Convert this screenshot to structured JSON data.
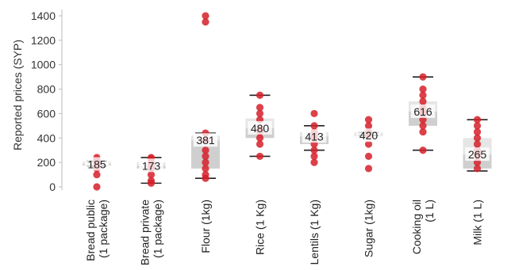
{
  "chart_data": {
    "type": "scatter",
    "ylabel": "Reported prices (SYP)",
    "ylim": [
      0,
      1400
    ],
    "yticks": [
      0,
      200,
      400,
      600,
      800,
      1000,
      1200,
      1400
    ],
    "grid": false,
    "categories": [
      [
        "Bread public",
        "(1 package)"
      ],
      [
        "Bread private",
        "(1 package)"
      ],
      [
        "Flour (1kg)"
      ],
      [
        "Rice (1 Kg)"
      ],
      [
        "Lentils (1 Kg)"
      ],
      [
        "Sugar (1kg)"
      ],
      [
        "Cooking oil",
        "(1 L)"
      ],
      [
        "Milk (1 L)"
      ]
    ],
    "series": [
      {
        "median": 185,
        "q1": 175,
        "q3": 205,
        "min": 170,
        "max": 210,
        "points": [
          0,
          100,
          150,
          175,
          185,
          200,
          220,
          240
        ]
      },
      {
        "median": 173,
        "q1": 150,
        "q3": 200,
        "min": 30,
        "max": 240,
        "points": [
          30,
          50,
          100,
          150,
          173,
          200,
          230,
          240
        ]
      },
      {
        "median": 381,
        "q1": 150,
        "q3": 420,
        "min": 70,
        "max": 440,
        "points": [
          70,
          100,
          150,
          200,
          250,
          300,
          381,
          440,
          1350,
          1400
        ]
      },
      {
        "median": 480,
        "q1": 400,
        "q3": 560,
        "min": 250,
        "max": 750,
        "points": [
          250,
          350,
          400,
          450,
          480,
          550,
          600,
          650,
          750
        ]
      },
      {
        "median": 413,
        "q1": 350,
        "q3": 450,
        "min": 300,
        "max": 500,
        "points": [
          200,
          250,
          300,
          350,
          400,
          413,
          450,
          500,
          600
        ]
      },
      {
        "median": 420,
        "q1": 420,
        "q3": 445,
        "min": 420,
        "max": 445,
        "points": [
          150,
          250,
          350,
          420,
          450,
          500,
          550
        ]
      },
      {
        "median": 616,
        "q1": 500,
        "q3": 700,
        "min": 300,
        "max": 900,
        "points": [
          300,
          450,
          500,
          550,
          600,
          616,
          650,
          700,
          750,
          800,
          900
        ]
      },
      {
        "median": 265,
        "q1": 150,
        "q3": 400,
        "min": 130,
        "max": 550,
        "points": [
          150,
          200,
          250,
          265,
          300,
          350,
          400,
          450,
          500,
          550
        ]
      }
    ],
    "colors": {
      "point": "#d6202a",
      "box_upper": "#e6e6e6",
      "box_lower": "#cfcfcf",
      "whisker": "#222222",
      "axis": "#bbbbbb"
    }
  }
}
